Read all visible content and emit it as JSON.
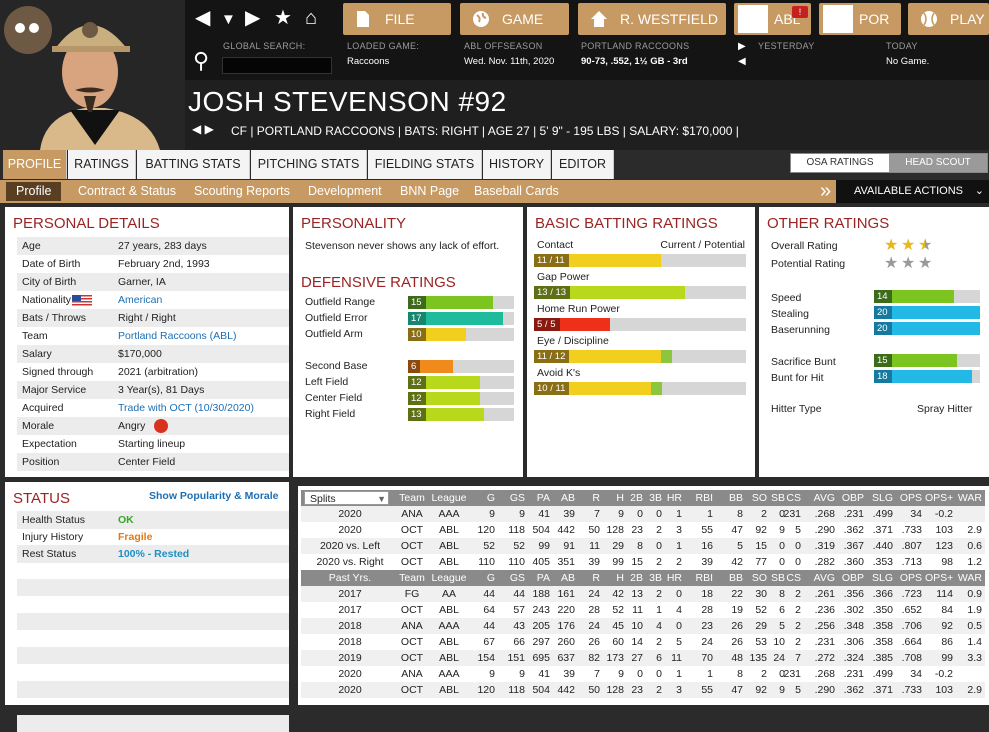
{
  "nav": {
    "buttons": [
      "FILE",
      "GAME",
      "R. WESTFIELD",
      "ABL",
      "POR",
      "PLAY"
    ],
    "badge": "!",
    "info": [
      {
        "label": "GLOBAL SEARCH:",
        "value": ""
      },
      {
        "label": "LOADED GAME:",
        "value": "Raccoons"
      },
      {
        "label": "ABL OFFSEASON",
        "value": "Wed. Nov. 11th, 2020"
      },
      {
        "label": "PORTLAND RACCOONS",
        "value": "90-73, .552, 1½ GB - 3rd"
      },
      {
        "label": "YESTERDAY",
        "value": ""
      },
      {
        "label": "TODAY",
        "value": "No Game."
      }
    ]
  },
  "player": {
    "name": "JOSH STEVENSON  #92",
    "info": "CF | PORTLAND RACCOONS  |  BATS: RIGHT  |  AGE 27  |  5' 9\" - 195 LBS  |  SALARY: $170,000  |"
  },
  "tabs": [
    "PROFILE",
    "RATINGS",
    "BATTING STATS",
    "PITCHING STATS",
    "FIELDING STATS",
    "HISTORY",
    "EDITOR"
  ],
  "toggle": [
    "OSA RATINGS",
    "HEAD SCOUT"
  ],
  "subtabs": [
    "Profile",
    "Contract & Status",
    "Scouting Reports",
    "Development",
    "BNN Page",
    "Baseball Cards"
  ],
  "actions": "AVAILABLE ACTIONS",
  "personal": {
    "title": "PERSONAL DETAILS",
    "rows": [
      {
        "k": "Age",
        "v": "27 years, 283 days"
      },
      {
        "k": "Date of Birth",
        "v": "February 2nd, 1993"
      },
      {
        "k": "City of Birth",
        "v": "Garner, IA"
      },
      {
        "k": "Nationality",
        "v": "American"
      },
      {
        "k": "Bats / Throws",
        "v": "Right / Right"
      },
      {
        "k": "Team",
        "v": "Portland Raccoons (ABL)"
      },
      {
        "k": "Salary",
        "v": "$170,000"
      },
      {
        "k": "Signed through",
        "v": "2021 (arbitration)"
      },
      {
        "k": "Major Service",
        "v": "3 Year(s), 81 Days"
      },
      {
        "k": "Acquired",
        "v": "Trade with OCT (10/30/2020)"
      },
      {
        "k": "Morale",
        "v": "Angry"
      },
      {
        "k": "Expectation",
        "v": "Starting lineup"
      },
      {
        "k": "Position",
        "v": "Center Field"
      }
    ]
  },
  "status": {
    "title": "STATUS",
    "link": "Show Popularity & Morale",
    "rows": [
      {
        "k": "Health Status",
        "v": "OK",
        "color": "#3aa52a"
      },
      {
        "k": "Injury History",
        "v": "Fragile",
        "color": "#e07b12"
      },
      {
        "k": "Rest Status",
        "v": "100% - Rested",
        "color": "#1d8fc4"
      }
    ]
  },
  "personality": {
    "title": "PERSONALITY",
    "text": "Stevenson never shows any lack of effort."
  },
  "defensive": {
    "title": "DEFENSIVE RATINGS",
    "rows": [
      {
        "label": "Outfield Range",
        "val": "15",
        "pct": 0.8,
        "color": "#7cc41f",
        "nc": "#3d6b1a"
      },
      {
        "label": "Outfield Error",
        "val": "17",
        "pct": 0.9,
        "color": "#1ebc9c",
        "nc": "#17866e"
      },
      {
        "label": "Outfield Arm",
        "val": "10",
        "pct": 0.55,
        "color": "#f2cf1f",
        "nc": "#8a6e16"
      },
      {
        "label": "Second Base",
        "val": "6",
        "pct": 0.42,
        "color": "#f08a1b",
        "nc": "#8a4a12"
      },
      {
        "label": "Left Field",
        "val": "12",
        "pct": 0.68,
        "color": "#b8d81c",
        "nc": "#5e7016"
      },
      {
        "label": "Center Field",
        "val": "12",
        "pct": 0.68,
        "color": "#b8d81c",
        "nc": "#5e7016"
      },
      {
        "label": "Right Field",
        "val": "13",
        "pct": 0.72,
        "color": "#b8d81c",
        "nc": "#5e7016"
      }
    ]
  },
  "batting": {
    "title": "BASIC BATTING RATINGS",
    "header": [
      "Contact",
      "Current / Potential"
    ],
    "rows": [
      {
        "label": "Contact",
        "val": "11 / 11",
        "pct": 0.6,
        "pct2": 0.6,
        "color": "#f2cf1f",
        "nc": "#8a6e16"
      },
      {
        "label": "Gap Power",
        "val": "13 / 13",
        "pct": 0.71,
        "pct2": 0.71,
        "color": "#b8d81c",
        "nc": "#5e7016"
      },
      {
        "label": "Home Run Power",
        "val": "5 / 5",
        "pct": 0.36,
        "pct2": 0.36,
        "color": "#ee2f19",
        "nc": "#8a1a10"
      },
      {
        "label": "Eye / Discipline",
        "val": "11 / 12",
        "pct": 0.6,
        "pct2": 0.65,
        "color": "#f2cf1f",
        "nc": "#8a6e16"
      },
      {
        "label": "Avoid K's",
        "val": "10 / 11",
        "pct": 0.55,
        "pct2": 0.6,
        "color": "#f2cf1f",
        "nc": "#8a6e16"
      }
    ]
  },
  "other": {
    "title": "OTHER RATINGS",
    "overall_label": "Overall Rating",
    "potential_label": "Potential Rating",
    "overall_stars": 2.5,
    "potential_stars": 0,
    "rows": [
      {
        "label": "Speed",
        "val": "14",
        "pct": 0.75,
        "color": "#7cc41f",
        "nc": "#3d6b1a"
      },
      {
        "label": "Stealing",
        "val": "20",
        "pct": 1.0,
        "color": "#22b9e6",
        "nc": "#147aa0"
      },
      {
        "label": "Baserunning",
        "val": "20",
        "pct": 1.0,
        "color": "#22b9e6",
        "nc": "#147aa0"
      },
      {
        "label": "Sacrifice Bunt",
        "val": "15",
        "pct": 0.78,
        "color": "#7cc41f",
        "nc": "#3d6b1a"
      },
      {
        "label": "Bunt for Hit",
        "val": "18",
        "pct": 0.92,
        "color": "#22b9e6",
        "nc": "#147aa0"
      }
    ],
    "hitter_label": "Hitter Type",
    "hitter_value": "Spray Hitter"
  },
  "stats": {
    "splits_label": "Splits",
    "cols": [
      "Team",
      "League",
      "G",
      "GS",
      "PA",
      "AB",
      "R",
      "H",
      "2B",
      "3B",
      "HR",
      "RBI",
      "BB",
      "SO",
      "SB",
      "CS",
      "AVG",
      "OBP",
      "SLG",
      "OPS",
      "OPS+",
      "WAR"
    ],
    "splits": [
      [
        "2020",
        "ANA",
        "AAA",
        "9",
        "9",
        "41",
        "39",
        "7",
        "9",
        "0",
        "0",
        "1",
        "1",
        "8",
        "2",
        "0",
        ".231",
        ".268",
        ".231",
        ".499",
        "34",
        "-0.2"
      ],
      [
        "2020",
        "OCT",
        "ABL",
        "120",
        "118",
        "504",
        "442",
        "50",
        "128",
        "23",
        "2",
        "3",
        "55",
        "47",
        "92",
        "9",
        "5",
        ".290",
        ".362",
        ".371",
        ".733",
        "103",
        "2.9"
      ],
      [
        "2020 vs. Left",
        "OCT",
        "ABL",
        "52",
        "52",
        "99",
        "91",
        "11",
        "29",
        "8",
        "0",
        "1",
        "16",
        "5",
        "15",
        "0",
        "0",
        ".319",
        ".367",
        ".440",
        ".807",
        "123",
        "0.6"
      ],
      [
        "2020 vs. Right",
        "OCT",
        "ABL",
        "110",
        "110",
        "405",
        "351",
        "39",
        "99",
        "15",
        "2",
        "2",
        "39",
        "42",
        "77",
        "0",
        "0",
        ".282",
        ".360",
        ".353",
        ".713",
        "98",
        "1.2"
      ]
    ],
    "past_label": "Past Yrs.",
    "past": [
      [
        "2017",
        "FG",
        "AA",
        "44",
        "44",
        "188",
        "161",
        "24",
        "42",
        "13",
        "2",
        "0",
        "18",
        "22",
        "30",
        "8",
        "2",
        ".261",
        ".356",
        ".366",
        ".723",
        "114",
        "0.9"
      ],
      [
        "2017",
        "OCT",
        "ABL",
        "64",
        "57",
        "243",
        "220",
        "28",
        "52",
        "11",
        "1",
        "4",
        "28",
        "19",
        "52",
        "6",
        "2",
        ".236",
        ".302",
        ".350",
        ".652",
        "84",
        "1.9"
      ],
      [
        "2018",
        "ANA",
        "AAA",
        "44",
        "43",
        "205",
        "176",
        "24",
        "45",
        "10",
        "4",
        "0",
        "23",
        "26",
        "29",
        "5",
        "2",
        ".256",
        ".348",
        ".358",
        ".706",
        "92",
        "0.5"
      ],
      [
        "2018",
        "OCT",
        "ABL",
        "67",
        "66",
        "297",
        "260",
        "26",
        "60",
        "14",
        "2",
        "5",
        "24",
        "26",
        "53",
        "10",
        "2",
        ".231",
        ".306",
        ".358",
        ".664",
        "86",
        "1.4"
      ],
      [
        "2019",
        "OCT",
        "ABL",
        "154",
        "151",
        "695",
        "637",
        "82",
        "173",
        "27",
        "6",
        "11",
        "70",
        "48",
        "135",
        "24",
        "7",
        ".272",
        ".324",
        ".385",
        ".708",
        "99",
        "3.3"
      ],
      [
        "2020",
        "ANA",
        "AAA",
        "9",
        "9",
        "41",
        "39",
        "7",
        "9",
        "0",
        "0",
        "1",
        "1",
        "8",
        "2",
        "0",
        ".231",
        ".268",
        ".231",
        ".499",
        "34",
        "-0.2"
      ],
      [
        "2020",
        "OCT",
        "ABL",
        "120",
        "118",
        "504",
        "442",
        "50",
        "128",
        "23",
        "2",
        "3",
        "55",
        "47",
        "92",
        "9",
        "5",
        ".290",
        ".362",
        ".371",
        ".733",
        "103",
        "2.9"
      ]
    ]
  }
}
